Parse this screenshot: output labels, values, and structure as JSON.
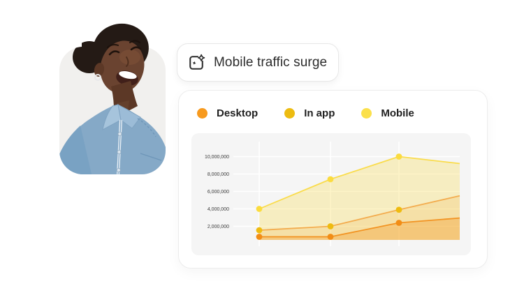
{
  "badge": {
    "label": "Mobile traffic surge",
    "icon": "insights-sparkle-icon"
  },
  "photo": {
    "description": "Smiling woman with hair in a bun, silver hoop earring, wearing a light blue denim shirt",
    "background": "#F1F0EE"
  },
  "legend": [
    {
      "label": "Desktop",
      "color": "#F79A1E"
    },
    {
      "label": "In app",
      "color": "#EDBC11"
    },
    {
      "label": "Mobile",
      "color": "#FBE04B"
    }
  ],
  "chart_data": {
    "type": "area",
    "title": "",
    "xlabel": "",
    "ylabel": "",
    "x": [
      1,
      2,
      3,
      4
    ],
    "series": [
      {
        "name": "Desktop",
        "values": [
          800000,
          800000,
          2400000,
          2950000
        ],
        "line_color": "#F29322",
        "dot_color": "#F28D15",
        "fill_color": "rgba(243,146,29,0.32)"
      },
      {
        "name": "In app",
        "values": [
          1550000,
          2000000,
          3900000,
          5500000
        ],
        "line_color": "#F3AC4E",
        "dot_color": "#EFBB10",
        "fill_color": "rgba(244,176,63,0.20)"
      },
      {
        "name": "Mobile",
        "values": [
          4000000,
          7400000,
          10000000,
          9200000
        ],
        "line_color": "#FADC4B",
        "dot_color": "#FBDC3F",
        "fill_color": "rgba(250,220,74,0.30)"
      }
    ],
    "y_ticks": [
      {
        "label": "10,000,000",
        "value": 10000000
      },
      {
        "label": "8,000,000",
        "value": 8000000
      },
      {
        "label": "6,000,000",
        "value": 6000000
      },
      {
        "label": "4,000,000",
        "value": 4000000
      },
      {
        "label": "2,000,000",
        "value": 2000000
      }
    ],
    "ylim": [
      0,
      10900000
    ],
    "grid": true,
    "grid_color": "#FFFFFF",
    "plot_background": "#F5F5F5",
    "legend_position": "top",
    "dots_on_first_n_points": 3
  },
  "colors": {
    "page_background": "#FFFFFF",
    "card_background": "#FFFFFF",
    "text_dark": "#2C2C2C"
  }
}
